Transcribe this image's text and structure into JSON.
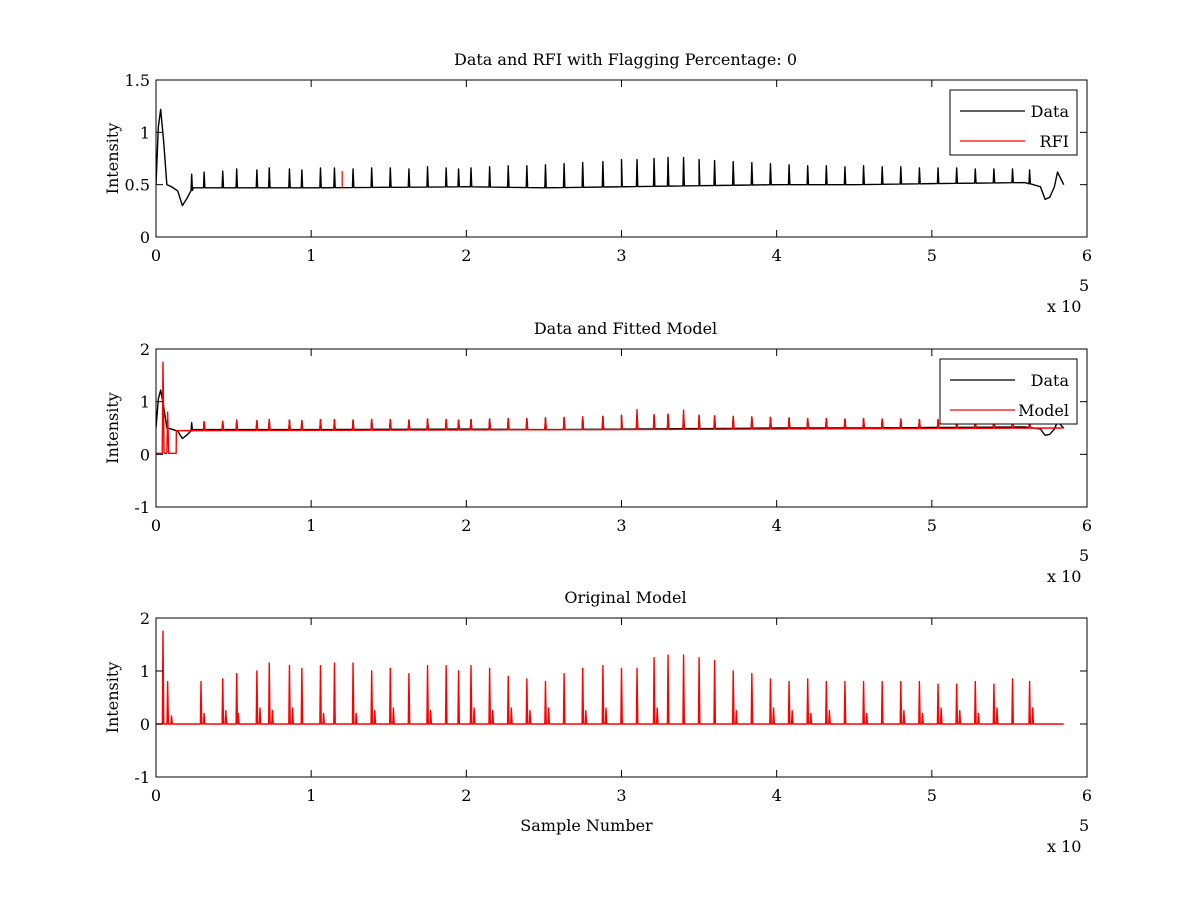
{
  "figure": {
    "background": "#ffffff"
  },
  "chart_data": [
    {
      "type": "line",
      "title": "Data and RFI with Flagging Percentage: 0",
      "xlabel": "",
      "ylabel": "Intensity",
      "xlim": [
        0,
        600000
      ],
      "ylim": [
        0,
        1.5
      ],
      "xticks": [
        0,
        1,
        2,
        3,
        4,
        5,
        6
      ],
      "yticks": [
        0,
        0.5,
        1,
        1.5
      ],
      "xticklabels": [
        "0",
        "1",
        "2",
        "3",
        "4",
        "5",
        "6"
      ],
      "yticklabels": [
        "0",
        "0.5",
        "1",
        "1.5"
      ],
      "x_multiplier": {
        "text": "x 10",
        "exponent": "5"
      },
      "legend_position": "top-right",
      "series": [
        {
          "name": "Data",
          "color": "#000000",
          "baseline": [
            [
              0,
              0.5
            ],
            [
              1500,
              1.05
            ],
            [
              3000,
              1.22
            ],
            [
              5000,
              0.9
            ],
            [
              7000,
              0.5
            ],
            [
              10000,
              0.48
            ],
            [
              14000,
              0.44
            ],
            [
              17000,
              0.3
            ],
            [
              20000,
              0.37
            ],
            [
              24000,
              0.47
            ],
            [
              50000,
              0.47
            ],
            [
              100000,
              0.47
            ],
            [
              200000,
              0.48
            ],
            [
              250000,
              0.47
            ],
            [
              300000,
              0.48
            ],
            [
              350000,
              0.49
            ],
            [
              400000,
              0.5
            ],
            [
              450000,
              0.5
            ],
            [
              500000,
              0.51
            ],
            [
              560000,
              0.52
            ],
            [
              570000,
              0.48
            ],
            [
              573000,
              0.36
            ],
            [
              576000,
              0.38
            ],
            [
              579000,
              0.48
            ],
            [
              581000,
              0.62
            ],
            [
              585000,
              0.5
            ]
          ],
          "spike_x": [
            23000,
            31000,
            43000,
            52000,
            65000,
            73000,
            86000,
            94000,
            106000,
            115000,
            127000,
            139000,
            151000,
            163000,
            175000,
            187000,
            195000,
            203000,
            215000,
            227000,
            239000,
            251000,
            263000,
            275000,
            288000,
            300000,
            310000,
            321000,
            330000,
            340000,
            350000,
            360000,
            372000,
            384000,
            396000,
            408000,
            420000,
            432000,
            444000,
            456000,
            468000,
            480000,
            492000,
            504000,
            516000,
            528000,
            540000,
            552000,
            563000
          ],
          "spike_peaks": [
            0.6,
            0.62,
            0.63,
            0.65,
            0.64,
            0.66,
            0.65,
            0.64,
            0.66,
            0.66,
            0.65,
            0.66,
            0.66,
            0.65,
            0.67,
            0.66,
            0.65,
            0.66,
            0.67,
            0.68,
            0.68,
            0.69,
            0.7,
            0.71,
            0.72,
            0.74,
            0.74,
            0.75,
            0.76,
            0.76,
            0.74,
            0.73,
            0.72,
            0.71,
            0.7,
            0.69,
            0.68,
            0.68,
            0.67,
            0.68,
            0.67,
            0.67,
            0.66,
            0.66,
            0.66,
            0.65,
            0.65,
            0.65,
            0.64
          ]
        },
        {
          "name": "RFI",
          "color": "#ff0000",
          "segments": [
            [
              [
                120000,
                0.47
              ],
              [
                120000,
                0.63
              ]
            ]
          ]
        }
      ]
    },
    {
      "type": "line",
      "title": "Data and Fitted Model",
      "xlabel": "",
      "ylabel": "Intensity",
      "xlim": [
        0,
        600000
      ],
      "ylim": [
        -1,
        2
      ],
      "xticks": [
        0,
        1,
        2,
        3,
        4,
        5,
        6
      ],
      "yticks": [
        -1,
        0,
        1,
        2
      ],
      "xticklabels": [
        "0",
        "1",
        "2",
        "3",
        "4",
        "5",
        "6"
      ],
      "yticklabels": [
        "-1",
        "0",
        "1",
        "2"
      ],
      "x_multiplier": {
        "text": "x 10",
        "exponent": "5"
      },
      "legend_position": "top-right",
      "series": [
        {
          "name": "Data",
          "color": "#000000",
          "baseline": [
            [
              0,
              0.5
            ],
            [
              1500,
              1.05
            ],
            [
              3000,
              1.22
            ],
            [
              5000,
              0.9
            ],
            [
              7000,
              0.5
            ],
            [
              10000,
              0.48
            ],
            [
              14000,
              0.44
            ],
            [
              17000,
              0.3
            ],
            [
              20000,
              0.37
            ],
            [
              24000,
              0.47
            ],
            [
              50000,
              0.47
            ],
            [
              100000,
              0.47
            ],
            [
              200000,
              0.48
            ],
            [
              250000,
              0.47
            ],
            [
              300000,
              0.48
            ],
            [
              350000,
              0.49
            ],
            [
              400000,
              0.5
            ],
            [
              450000,
              0.5
            ],
            [
              500000,
              0.51
            ],
            [
              560000,
              0.52
            ],
            [
              570000,
              0.48
            ],
            [
              573000,
              0.36
            ],
            [
              576000,
              0.38
            ],
            [
              579000,
              0.48
            ],
            [
              581000,
              0.62
            ],
            [
              585000,
              0.5
            ]
          ],
          "spike_x": [
            23000,
            31000,
            43000,
            52000,
            65000,
            73000,
            86000,
            94000,
            106000,
            115000,
            127000,
            139000,
            151000,
            163000,
            175000,
            187000,
            195000,
            203000,
            215000,
            227000,
            239000,
            251000,
            263000,
            275000,
            288000,
            300000,
            310000,
            321000,
            330000,
            340000,
            350000,
            360000,
            372000,
            384000,
            396000,
            408000,
            420000,
            432000,
            444000,
            456000,
            468000,
            480000,
            492000,
            504000,
            516000,
            528000,
            540000,
            552000,
            563000
          ],
          "spike_peaks": [
            0.6,
            0.62,
            0.63,
            0.65,
            0.64,
            0.66,
            0.65,
            0.64,
            0.66,
            0.66,
            0.65,
            0.66,
            0.66,
            0.65,
            0.67,
            0.66,
            0.65,
            0.66,
            0.67,
            0.68,
            0.68,
            0.69,
            0.7,
            0.71,
            0.72,
            0.74,
            0.74,
            0.75,
            0.76,
            0.76,
            0.74,
            0.73,
            0.72,
            0.71,
            0.7,
            0.69,
            0.68,
            0.68,
            0.67,
            0.68,
            0.67,
            0.67,
            0.66,
            0.66,
            0.66,
            0.65,
            0.65,
            0.65,
            0.64
          ]
        },
        {
          "name": "Model",
          "color": "#ff0000",
          "early": [
            [
              0,
              0.02
            ],
            [
              4000,
              0.02
            ],
            [
              4500,
              1.75
            ],
            [
              5200,
              0.02
            ],
            [
              7000,
              0.02
            ],
            [
              7500,
              0.8
            ],
            [
              8200,
              0.02
            ],
            [
              13000,
              0.02
            ],
            [
              13100,
              0.45
            ],
            [
              28000,
              0.45
            ]
          ],
          "baseline": [
            [
              28000,
              0.45
            ],
            [
              300000,
              0.47
            ],
            [
              585000,
              0.5
            ]
          ],
          "spike_x": [
            31000,
            43000,
            52000,
            65000,
            73000,
            86000,
            94000,
            106000,
            115000,
            127000,
            139000,
            151000,
            163000,
            175000,
            187000,
            195000,
            203000,
            215000,
            227000,
            239000,
            251000,
            263000,
            275000,
            288000,
            300000,
            310000,
            321000,
            330000,
            340000,
            350000,
            360000,
            372000,
            384000,
            396000,
            408000,
            420000,
            432000,
            444000,
            456000,
            468000,
            480000,
            492000,
            504000,
            516000,
            528000,
            540000,
            552000,
            563000
          ],
          "spike_peaks": [
            0.62,
            0.63,
            0.65,
            0.64,
            0.66,
            0.65,
            0.64,
            0.66,
            0.66,
            0.65,
            0.66,
            0.66,
            0.65,
            0.67,
            0.66,
            0.65,
            0.66,
            0.67,
            0.68,
            0.68,
            0.69,
            0.7,
            0.71,
            0.72,
            0.74,
            0.85,
            0.75,
            0.76,
            0.84,
            0.74,
            0.73,
            0.72,
            0.71,
            0.7,
            0.69,
            0.68,
            0.68,
            0.67,
            0.68,
            0.67,
            0.67,
            0.66,
            0.66,
            0.66,
            0.65,
            0.65,
            0.65,
            0.64
          ]
        }
      ]
    },
    {
      "type": "line",
      "title": "Original Model",
      "xlabel": "Sample Number",
      "ylabel": "Intensity",
      "xlim": [
        0,
        600000
      ],
      "ylim": [
        -1,
        2
      ],
      "xticks": [
        0,
        1,
        2,
        3,
        4,
        5,
        6
      ],
      "yticks": [
        -1,
        0,
        1,
        2
      ],
      "xticklabels": [
        "0",
        "1",
        "2",
        "3",
        "4",
        "5",
        "6"
      ],
      "yticklabels": [
        "-1",
        "0",
        "1",
        "2"
      ],
      "x_multiplier": {
        "text": "x 10",
        "exponent": "5"
      },
      "legend_position": "none",
      "series": [
        {
          "name": "",
          "color": "#ff0000",
          "baseline": [
            [
              0,
              0.0
            ],
            [
              585000,
              0.0
            ]
          ],
          "spike_x": [
            4500,
            7500,
            10000,
            29000,
            31000,
            43000,
            45000,
            52000,
            53000,
            65000,
            67000,
            73000,
            75000,
            86000,
            88000,
            94000,
            106000,
            108000,
            115000,
            127000,
            129000,
            139000,
            141000,
            151000,
            153000,
            163000,
            175000,
            177000,
            187000,
            195000,
            203000,
            205000,
            215000,
            217000,
            227000,
            229000,
            239000,
            241000,
            251000,
            253000,
            263000,
            275000,
            277000,
            288000,
            290000,
            300000,
            310000,
            321000,
            323000,
            330000,
            340000,
            350000,
            360000,
            372000,
            374000,
            384000,
            396000,
            398000,
            408000,
            410000,
            420000,
            422000,
            432000,
            434000,
            444000,
            456000,
            458000,
            468000,
            480000,
            482000,
            492000,
            494000,
            504000,
            506000,
            516000,
            518000,
            528000,
            530000,
            540000,
            542000,
            552000,
            563000,
            565000
          ],
          "spike_peaks": [
            1.75,
            0.8,
            0.15,
            0.8,
            0.2,
            0.85,
            0.25,
            0.95,
            0.2,
            1.0,
            0.3,
            1.15,
            0.25,
            1.1,
            0.3,
            1.05,
            1.1,
            0.2,
            1.15,
            1.15,
            0.2,
            1.0,
            0.25,
            1.05,
            0.3,
            0.95,
            1.1,
            0.25,
            1.1,
            1.0,
            1.1,
            0.3,
            1.05,
            0.25,
            0.9,
            0.3,
            0.85,
            0.25,
            0.8,
            0.3,
            0.95,
            1.05,
            0.25,
            1.1,
            0.3,
            1.05,
            1.05,
            1.25,
            0.3,
            1.3,
            1.3,
            1.25,
            1.2,
            1.0,
            0.25,
            0.95,
            0.85,
            0.3,
            0.8,
            0.25,
            0.85,
            0.2,
            0.8,
            0.25,
            0.8,
            0.8,
            0.2,
            0.8,
            0.8,
            0.25,
            0.8,
            0.2,
            0.75,
            0.3,
            0.75,
            0.25,
            0.8,
            0.2,
            0.75,
            0.3,
            0.85,
            0.8,
            0.3
          ]
        }
      ]
    }
  ]
}
